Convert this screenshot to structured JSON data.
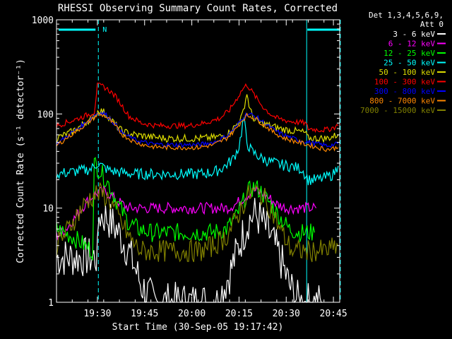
{
  "chart_data": {
    "type": "line",
    "title": "RHESSI Observing Summary Count Rates, Corrected",
    "xlabel": "Start Time (30-Sep-05 19:17:42)",
    "ylabel": "Corrected Count Rate (s⁻¹ detector⁻¹)",
    "y_scale": "log",
    "ylim": [
      1,
      1000
    ],
    "xlim_minutes_since_1917": [
      0.7,
      38.3
    ],
    "x_ticks": [
      {
        "label": "19:30",
        "minutes_since_1917": 13
      },
      {
        "label": "19:45",
        "minutes_since_1917": 28
      },
      {
        "label": "20:00",
        "minutes_since_1917": 43
      },
      {
        "label": "20:15",
        "minutes_since_1917": 58
      },
      {
        "label": "20:30",
        "minutes_since_1917": 73
      },
      {
        "label": "20:45",
        "minutes_since_1917": 88
      }
    ],
    "y_ticks": [
      {
        "label": "1",
        "value": 1
      },
      {
        "label": "10",
        "value": 10
      },
      {
        "label": "100",
        "value": 100
      },
      {
        "label": "1000",
        "value": 1000
      }
    ],
    "detector_info": [
      "Det 1,3,4,5,6,9,",
      "Att 0"
    ],
    "flag_label": "N",
    "legend_placement": "right",
    "series": [
      {
        "name": "3 - 6 keV",
        "color": "#ffffff",
        "x": [
          0,
          10,
          13,
          13.5,
          16,
          19,
          23,
          27,
          31,
          35,
          39,
          43,
          47,
          51,
          55,
          58,
          61,
          63,
          65,
          68,
          71,
          74,
          77,
          79,
          80,
          83,
          84.5
        ],
        "y": [
          3.0,
          3.0,
          3.0,
          8.5,
          8.0,
          6.0,
          3.5,
          1.5,
          1.0,
          1.0,
          1.0,
          1.0,
          1.0,
          1.0,
          2.0,
          4.0,
          7.5,
          8.5,
          7.5,
          5.0,
          3.0,
          1.5,
          1.0,
          1.0,
          1.0,
          1.0,
          1.0
        ]
      },
      {
        "name": "6 - 12 keV",
        "color": "#ff00ff",
        "x": [
          0,
          3,
          6,
          9,
          11,
          13,
          15,
          17,
          19,
          21,
          23,
          26,
          30,
          35,
          40,
          45,
          50,
          54,
          57,
          59,
          61,
          62.5,
          64,
          66,
          68,
          70,
          73,
          76,
          80,
          82.5
        ],
        "y": [
          5.0,
          6.0,
          8.0,
          11.0,
          13.0,
          14.5,
          15.0,
          14.0,
          12.0,
          11.0,
          10.0,
          10.0,
          10.0,
          10.0,
          10.0,
          10.0,
          10.0,
          10.0,
          11.0,
          12.5,
          14.0,
          15.5,
          15.0,
          14.0,
          12.5,
          11.0,
          10.0,
          10.0,
          10.0,
          10.0
        ]
      },
      {
        "name": "12 - 25 keV",
        "color": "#00ff00",
        "x": [
          0,
          5,
          9,
          11.5,
          12,
          13,
          15,
          17,
          19,
          21,
          23,
          26,
          30,
          35,
          40,
          45,
          50,
          54,
          57,
          59,
          61,
          63,
          65,
          68,
          71,
          74,
          77,
          80,
          82
        ],
        "y": [
          6.0,
          5.0,
          4.0,
          3.5,
          30.0,
          27.0,
          22.0,
          17.0,
          12.0,
          9.0,
          7.0,
          6.0,
          5.5,
          5.5,
          5.5,
          5.5,
          5.5,
          6.0,
          8.0,
          11.0,
          15.0,
          17.0,
          15.0,
          11.0,
          8.0,
          6.0,
          5.5,
          5.5,
          5.5
        ]
      },
      {
        "name": "25 - 50 keV",
        "color": "#00ffff",
        "x": [
          0,
          4,
          8,
          11,
          13,
          15,
          17,
          20,
          25,
          30,
          35,
          40,
          45,
          50,
          53,
          56,
          58,
          59.5,
          60.5,
          62,
          65,
          68,
          71,
          74,
          76,
          78,
          80,
          83,
          85.5,
          88,
          89.5
        ],
        "y": [
          23.0,
          24.0,
          25.0,
          26.0,
          30.0,
          27.0,
          25.0,
          24.0,
          23.0,
          23.0,
          23.0,
          23.0,
          23.0,
          24.0,
          27.0,
          33.0,
          45.0,
          90.0,
          50.0,
          40.0,
          34.0,
          31.0,
          29.0,
          28.0,
          27.0,
          26.0,
          20.0,
          20.0,
          21.0,
          23.0,
          28.0
        ]
      },
      {
        "name": "50 - 100 keV",
        "color": "#dddd00",
        "x": [
          0,
          5,
          9,
          12,
          13.5,
          15,
          17,
          19,
          21,
          25,
          30,
          35,
          40,
          45,
          50,
          54,
          57,
          59,
          60.5,
          61.5,
          63,
          65,
          68,
          71,
          74,
          77,
          79,
          80,
          83,
          86,
          89.5
        ],
        "y": [
          55.0,
          65.0,
          80.0,
          95.0,
          110.0,
          105.0,
          90.0,
          75.0,
          65.0,
          60.0,
          57.0,
          55.0,
          55.0,
          55.0,
          56.0,
          60.0,
          75.0,
          95.0,
          165.0,
          110.0,
          85.0,
          80.0,
          75.0,
          70.0,
          67.0,
          65.0,
          63.0,
          55.0,
          55.0,
          55.0,
          60.0
        ]
      },
      {
        "name": "100 - 300 keV",
        "color": "#ff0000",
        "x": [
          0,
          5,
          9,
          12,
          13,
          15,
          17,
          19,
          21,
          23,
          27,
          32,
          37,
          42,
          47,
          52,
          55,
          57,
          59,
          60.5,
          62,
          64,
          66,
          68,
          70,
          73,
          76,
          79,
          80,
          83,
          86,
          89.5
        ],
        "y": [
          75.0,
          85.0,
          95.0,
          105.0,
          200.0,
          195.0,
          175.0,
          150.0,
          120.0,
          95.0,
          80.0,
          75.0,
          75.0,
          75.0,
          80.0,
          90.0,
          110.0,
          140.0,
          180.0,
          205.0,
          175.0,
          140.0,
          115.0,
          100.0,
          90.0,
          85.0,
          82.0,
          80.0,
          70.0,
          68.0,
          68.0,
          75.0
        ]
      },
      {
        "name": "300 - 800 keV",
        "color": "#0000ff",
        "x": [
          0,
          4,
          8,
          11,
          13,
          15,
          17,
          19,
          21,
          25,
          30,
          35,
          40,
          45,
          50,
          54,
          57,
          59,
          60.5,
          62,
          64,
          66,
          69,
          72,
          75,
          78,
          80,
          83,
          86,
          89.5
        ],
        "y": [
          48.0,
          60.0,
          75.0,
          90.0,
          103.0,
          102.0,
          90.0,
          75.0,
          62.0,
          53.0,
          48.0,
          47.0,
          47.0,
          47.0,
          50.0,
          58.0,
          72.0,
          90.0,
          100.0,
          98.0,
          90.0,
          80.0,
          68.0,
          60.0,
          55.0,
          52.0,
          50.0,
          48.0,
          46.0,
          48.0
        ]
      },
      {
        "name": "800 - 7000 keV",
        "color": "#ff8800",
        "x": [
          0,
          4,
          8,
          11,
          13,
          15,
          17,
          19,
          21,
          25,
          30,
          35,
          40,
          45,
          50,
          54,
          57,
          59,
          60.5,
          62,
          64,
          66,
          69,
          72,
          75,
          78,
          80,
          83,
          86,
          89.5
        ],
        "y": [
          46.0,
          58.0,
          72.0,
          86.0,
          98.0,
          97.0,
          86.0,
          72.0,
          60.0,
          50.0,
          45.0,
          44.0,
          44.0,
          44.0,
          47.0,
          55.0,
          69.0,
          86.0,
          96.0,
          94.0,
          86.0,
          76.0,
          64.0,
          56.0,
          52.0,
          49.0,
          47.0,
          44.0,
          42.0,
          44.0
        ]
      },
      {
        "name": "7000 - 15000 keV",
        "color": "#808000",
        "x": [
          0,
          3,
          6,
          9,
          11,
          13,
          15,
          17,
          19,
          21,
          23,
          25,
          27,
          30,
          34,
          38,
          42,
          46,
          50,
          54,
          57,
          59,
          61,
          63,
          65,
          67,
          69,
          71,
          73,
          75,
          78,
          82,
          86,
          89.5
        ],
        "y": [
          4.0,
          5.5,
          8.0,
          11.0,
          13.0,
          14.5,
          14.0,
          12.0,
          9.0,
          6.5,
          5.0,
          4.0,
          3.5,
          3.5,
          3.5,
          3.5,
          3.5,
          3.5,
          4.0,
          5.0,
          7.5,
          10.5,
          13.5,
          15.0,
          14.0,
          11.5,
          8.5,
          6.0,
          4.5,
          3.5,
          3.5,
          3.5,
          3.5,
          4.0
        ]
      }
    ]
  }
}
